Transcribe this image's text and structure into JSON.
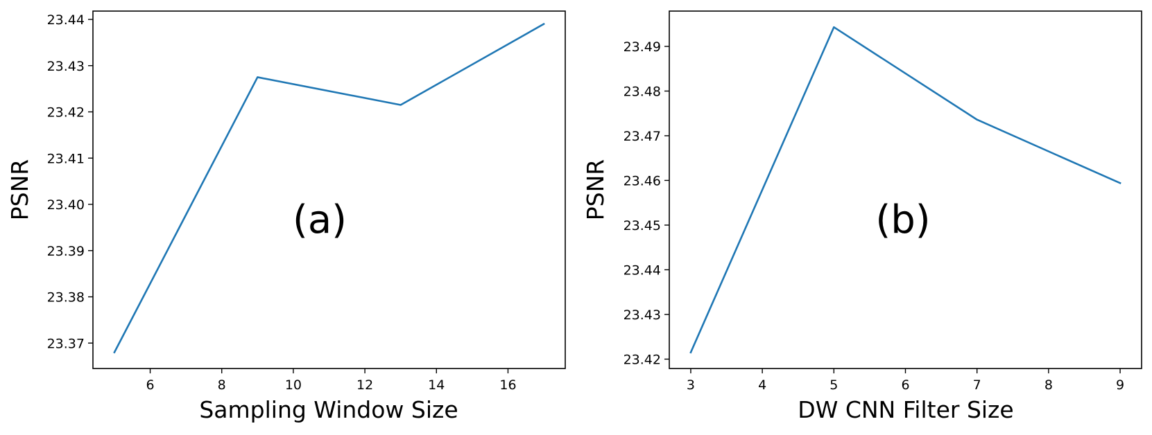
{
  "chart_data": [
    {
      "type": "line",
      "annotation": "(a)",
      "xlabel": "Sampling Window Size",
      "ylabel": "PSNR",
      "x": [
        5,
        9,
        13,
        17
      ],
      "series": [
        {
          "values": [
            23.368,
            23.4275,
            23.4215,
            23.439
          ],
          "color": "#1f77b4"
        }
      ],
      "xlim": [
        4.4,
        17.6
      ],
      "ylim": [
        23.3645,
        23.4418
      ],
      "xticks": [
        6,
        8,
        10,
        12,
        14,
        16
      ],
      "yticks": [
        23.37,
        23.38,
        23.39,
        23.4,
        23.41,
        23.42,
        23.43,
        23.44
      ],
      "xtick_labels": [
        "6",
        "8",
        "10",
        "12",
        "14",
        "16"
      ],
      "ytick_labels": [
        "23.37",
        "23.38",
        "23.39",
        "23.40",
        "23.41",
        "23.42",
        "23.43",
        "23.44"
      ],
      "grid": false,
      "legend": "none"
    },
    {
      "type": "line",
      "annotation": "(b)",
      "xlabel": "DW CNN Filter Size",
      "ylabel": "PSNR",
      "x": [
        3,
        5,
        7,
        9
      ],
      "series": [
        {
          "values": [
            23.4215,
            23.4943,
            23.4736,
            23.4594
          ],
          "color": "#1f77b4"
        }
      ],
      "xlim": [
        2.7,
        9.3
      ],
      "ylim": [
        23.4179,
        23.4979
      ],
      "xticks": [
        3,
        4,
        5,
        6,
        7,
        8,
        9
      ],
      "yticks": [
        23.42,
        23.43,
        23.44,
        23.45,
        23.46,
        23.47,
        23.48,
        23.49
      ],
      "xtick_labels": [
        "3",
        "4",
        "5",
        "6",
        "7",
        "8",
        "9"
      ],
      "ytick_labels": [
        "23.42",
        "23.43",
        "23.44",
        "23.45",
        "23.46",
        "23.47",
        "23.48",
        "23.49"
      ],
      "grid": false,
      "legend": "none"
    }
  ]
}
